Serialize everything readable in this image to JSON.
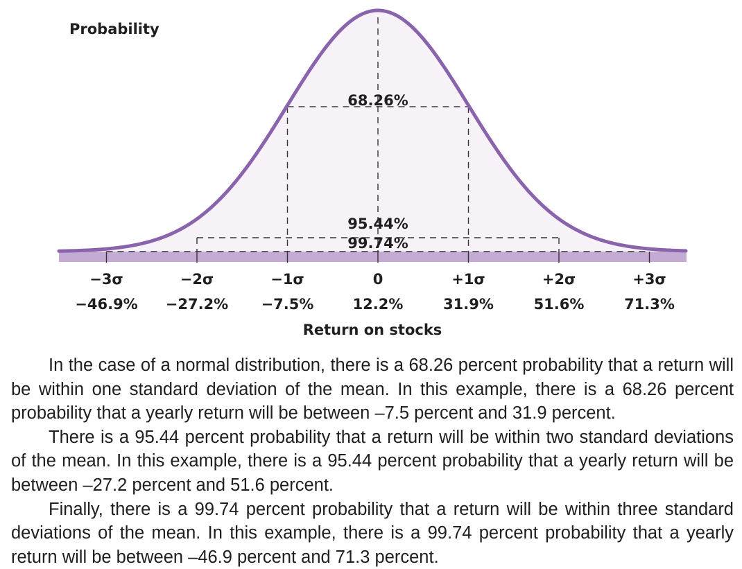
{
  "chart_data": {
    "type": "area",
    "distribution": "normal",
    "ylabel": "Probability",
    "xlabel": "Return on stocks",
    "mean": 12.2,
    "std_dev": 19.7,
    "ticks": [
      {
        "sigma": -3,
        "label": "−3σ",
        "value_label": "−46.9%",
        "value": -46.9
      },
      {
        "sigma": -2,
        "label": "−2σ",
        "value_label": "−27.2%",
        "value": -27.2
      },
      {
        "sigma": -1,
        "label": "−1σ",
        "value_label": "−7.5%",
        "value": -7.5
      },
      {
        "sigma": 0,
        "label": "0",
        "value_label": "12.2%",
        "value": 12.2
      },
      {
        "sigma": 1,
        "label": "+1σ",
        "value_label": "31.9%",
        "value": 31.9
      },
      {
        "sigma": 2,
        "label": "+2σ",
        "value_label": "51.6%",
        "value": 51.6
      },
      {
        "sigma": 3,
        "label": "+3σ",
        "value_label": "71.3%",
        "value": 71.3
      }
    ],
    "intervals": [
      {
        "sigma": 1,
        "label": "68.26%",
        "probability": 68.26
      },
      {
        "sigma": 2,
        "label": "95.44%",
        "probability": 95.44
      },
      {
        "sigma": 3,
        "label": "99.74%",
        "probability": 99.74
      }
    ],
    "grid": false,
    "colors": {
      "curve": "#8a63ad",
      "fill": "#f7f1f8",
      "baseline_band": "#c3abd3",
      "dashes": "#333333"
    }
  },
  "caption": {
    "paragraphs": [
      "In the case of a normal distribution, there is a 68.26 percent probability that a return will be within one standard deviation of the mean. In this example, there is a 68.26 percent probability that a yearly return will be between –7.5 percent and 31.9 percent.",
      "There is a 95.44 percent probability that a return will be within two standard deviations of the mean. In this example, there is a 95.44 percent probability that a yearly return will be between –27.2 percent and 51.6 percent.",
      "Finally, there is a 99.74 percent probability that a return will be within three standard deviations of the mean. In this example, there is a 99.74 percent probability that a yearly return will be between –46.9 percent and 71.3 percent."
    ]
  }
}
